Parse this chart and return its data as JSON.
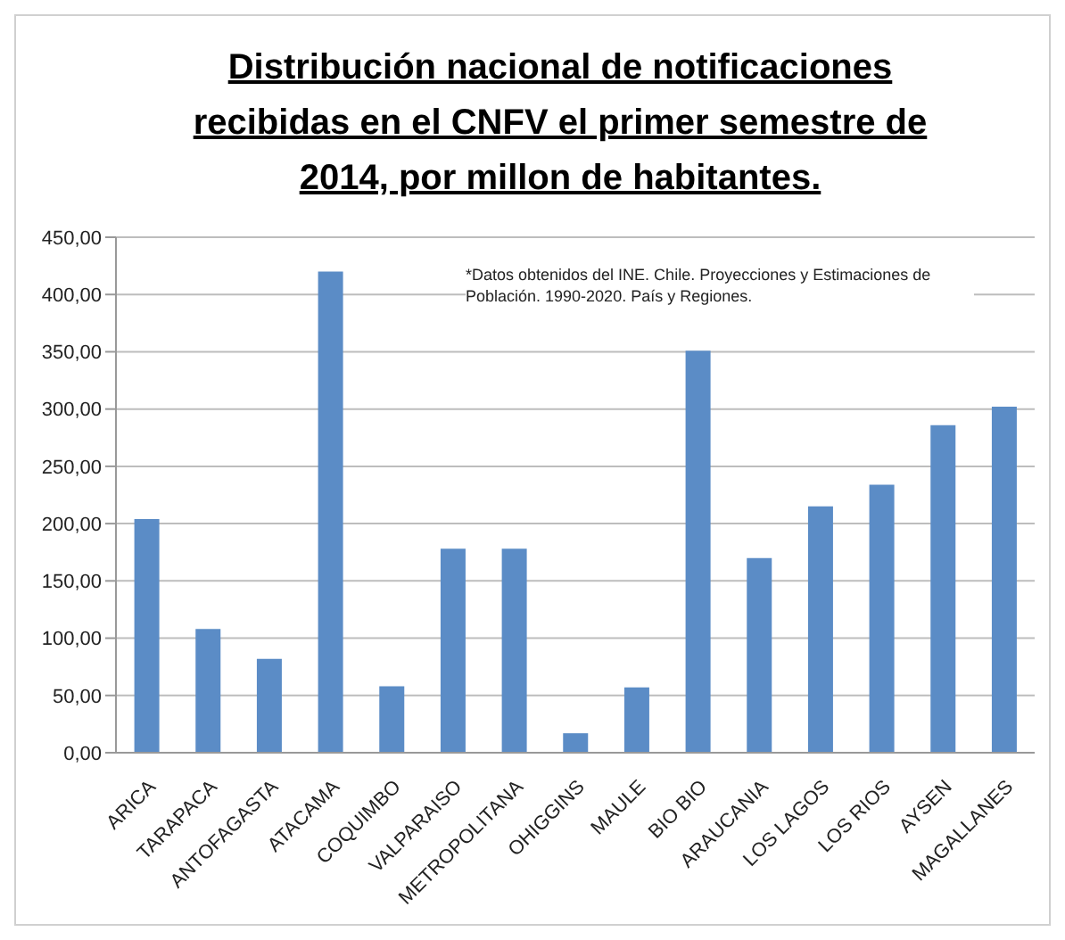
{
  "chart_data": {
    "type": "bar",
    "title": "Distribución nacional de notificaciones recibidas en el CNFV el primer semestre de 2014, por millon de habitantes.",
    "categories": [
      "ARICA",
      "TARAPACA",
      "ANTOFAGASTA",
      "ATACAMA",
      "COQUIMBO",
      "VALPARAISO",
      "METROPOLITANA",
      "OHIGGINS",
      "MAULE",
      "BIO BIO",
      "ARAUCANIA",
      "LOS LAGOS",
      "LOS RIOS",
      "AYSEN",
      "MAGALLANES"
    ],
    "values": [
      204,
      108,
      82,
      420,
      58,
      178,
      178,
      17,
      57,
      351,
      170,
      215,
      234,
      286,
      302
    ],
    "color": "#5b8cc6",
    "ylim": [
      0,
      450
    ],
    "yticks": [
      {
        "value": 0,
        "label": "0,00"
      },
      {
        "value": 50,
        "label": "50,00"
      },
      {
        "value": 100,
        "label": "100,00"
      },
      {
        "value": 150,
        "label": "150,00"
      },
      {
        "value": 200,
        "label": "200,00"
      },
      {
        "value": 250,
        "label": "250,00"
      },
      {
        "value": 300,
        "label": "300,00"
      },
      {
        "value": 350,
        "label": "350,00"
      },
      {
        "value": 400,
        "label": "400,00"
      },
      {
        "value": 450,
        "label": "450,00"
      }
    ],
    "grid": "y",
    "annotations": [
      "*Datos obtenidos del INE. Chile. Proyecciones y Estimaciones de Población. 1990-2020. País y Regiones."
    ]
  }
}
